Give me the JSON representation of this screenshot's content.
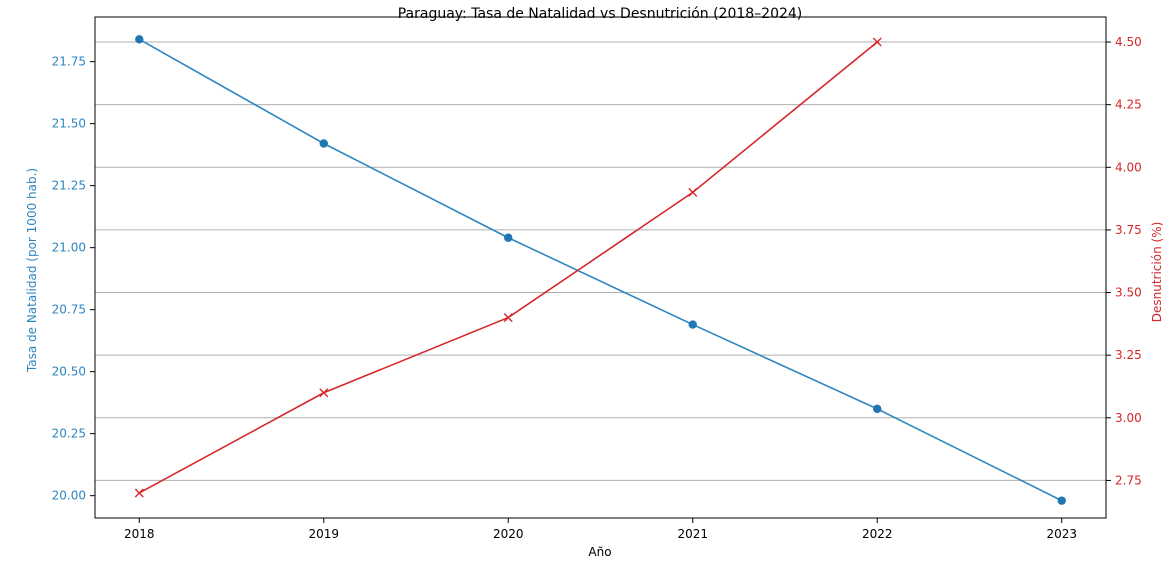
{
  "chart_data": {
    "type": "line",
    "title": "Paraguay: Tasa de Natalidad vs Desnutrición (2018–2024)",
    "xlabel": "Año",
    "ylabel_left": "Tasa de Natalidad (por 1000 hab.)",
    "ylabel_right": "Desnutrición (%)",
    "categories": [
      2018,
      2019,
      2020,
      2021,
      2022,
      2023
    ],
    "x_ticks": [
      "2018",
      "2019",
      "2020",
      "2021",
      "2022",
      "2023"
    ],
    "y_left_ticks": [
      20.0,
      20.25,
      20.5,
      20.75,
      21.0,
      21.25,
      21.5,
      21.75
    ],
    "y_left_tick_labels": [
      "20.00",
      "20.25",
      "20.50",
      "20.75",
      "21.00",
      "21.25",
      "21.50",
      "21.75"
    ],
    "y_right_ticks": [
      2.75,
      3.0,
      3.25,
      3.5,
      3.75,
      4.0,
      4.25,
      4.5
    ],
    "y_right_tick_labels": [
      "2.75",
      "3.00",
      "3.25",
      "3.50",
      "3.75",
      "4.00",
      "4.25",
      "4.50"
    ],
    "ylim_left": [
      19.91,
      21.93
    ],
    "ylim_right": [
      2.6,
      4.6
    ],
    "xlim": [
      2017.76,
      2023.24
    ],
    "grid": "horizontal",
    "series": [
      {
        "axis": "left",
        "marker": "circle",
        "color": "#2e86c1",
        "marker_color": "#1f77b4",
        "x": [
          2018,
          2019,
          2020,
          2021,
          2022,
          2023
        ],
        "values": [
          21.84,
          21.42,
          21.04,
          20.69,
          20.35,
          19.98
        ]
      },
      {
        "axis": "right",
        "marker": "x",
        "color": "#d62728",
        "x": [
          2018,
          2019,
          2020,
          2021,
          2022
        ],
        "values": [
          2.7,
          3.1,
          3.4,
          3.9,
          4.5
        ]
      }
    ],
    "colors": {
      "left_axis": "#2e86c1",
      "right_axis": "#d62728",
      "grid": "#b0b0b0",
      "frame": "#000000",
      "text": "#000000"
    }
  }
}
